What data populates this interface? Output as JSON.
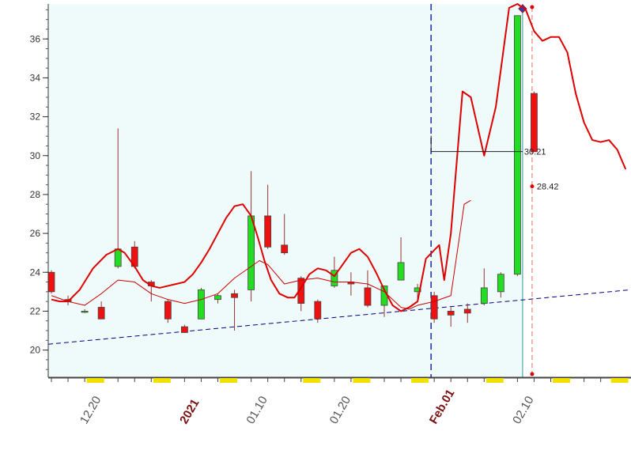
{
  "chart_data": {
    "type": "candlestick",
    "y_axis": {
      "ticks": [
        20,
        22,
        24,
        26,
        28,
        30,
        32,
        34,
        36
      ],
      "ylim": [
        18.6,
        37.8
      ]
    },
    "x_axis": {
      "labels": [
        {
          "text": "12.20",
          "index": 2,
          "strong": false
        },
        {
          "text": "2021",
          "index": 8,
          "strong": true
        },
        {
          "text": "01.10",
          "index": 12,
          "strong": false
        },
        {
          "text": "01.20",
          "index": 17,
          "strong": false
        },
        {
          "text": "Feb.01",
          "index": 23,
          "strong": true
        },
        {
          "text": "02.10",
          "index": 28,
          "strong": false
        }
      ]
    },
    "candles": [
      {
        "o": 24.0,
        "h": 24.1,
        "l": 22.9,
        "c": 23.0
      },
      {
        "o": 22.6,
        "h": 22.8,
        "l": 22.3,
        "c": 22.5
      },
      {
        "o": 22.0,
        "h": 22.1,
        "l": 21.9,
        "c": 22.0
      },
      {
        "o": 22.2,
        "h": 22.5,
        "l": 21.6,
        "c": 21.6
      },
      {
        "o": 24.3,
        "h": 31.4,
        "l": 24.2,
        "c": 25.2
      },
      {
        "o": 25.3,
        "h": 25.6,
        "l": 24.2,
        "c": 24.3
      },
      {
        "o": 23.5,
        "h": 23.6,
        "l": 22.5,
        "c": 23.3
      },
      {
        "o": 22.5,
        "h": 22.6,
        "l": 21.4,
        "c": 21.6
      },
      {
        "o": 21.2,
        "h": 21.3,
        "l": 20.9,
        "c": 20.9
      },
      {
        "o": 21.6,
        "h": 23.2,
        "l": 21.6,
        "c": 23.1
      },
      {
        "o": 22.6,
        "h": 22.9,
        "l": 22.4,
        "c": 22.8
      },
      {
        "o": 22.9,
        "h": 23.1,
        "l": 21.0,
        "c": 22.7
      },
      {
        "o": 23.1,
        "h": 29.2,
        "l": 22.5,
        "c": 26.9
      },
      {
        "o": 26.9,
        "h": 28.5,
        "l": 25.2,
        "c": 25.3
      },
      {
        "o": 25.4,
        "h": 27.0,
        "l": 24.9,
        "c": 25.0
      },
      {
        "o": 23.7,
        "h": 23.8,
        "l": 22.0,
        "c": 22.4
      },
      {
        "o": 22.5,
        "h": 22.6,
        "l": 21.4,
        "c": 21.6
      },
      {
        "o": 23.3,
        "h": 24.8,
        "l": 23.2,
        "c": 24.1
      },
      {
        "o": 23.5,
        "h": 24.0,
        "l": 22.8,
        "c": 23.4
      },
      {
        "o": 23.2,
        "h": 24.1,
        "l": 22.2,
        "c": 22.3
      },
      {
        "o": 22.3,
        "h": 23.3,
        "l": 21.7,
        "c": 23.3
      },
      {
        "o": 23.6,
        "h": 25.8,
        "l": 23.6,
        "c": 24.5
      },
      {
        "o": 23.0,
        "h": 23.4,
        "l": 22.6,
        "c": 23.2
      },
      {
        "o": 22.8,
        "h": 23.0,
        "l": 21.4,
        "c": 21.6
      },
      {
        "o": 22.0,
        "h": 22.2,
        "l": 21.2,
        "c": 21.8
      },
      {
        "o": 22.1,
        "h": 22.4,
        "l": 21.4,
        "c": 21.9
      },
      {
        "o": 22.4,
        "h": 24.2,
        "l": 22.3,
        "c": 23.2
      },
      {
        "o": 23.0,
        "h": 24.0,
        "l": 22.7,
        "c": 23.9
      },
      {
        "o": 23.9,
        "h": 37.2,
        "l": 23.8,
        "c": 37.2
      },
      {
        "o": 33.2,
        "h": 33.3,
        "l": 30.2,
        "c": 30.2
      }
    ],
    "overlay_series": [
      {
        "color": "#dd0000",
        "width": 2,
        "points": [
          [
            0,
            22.6
          ],
          [
            0.5,
            22.5
          ],
          [
            1,
            22.5
          ],
          [
            1.7,
            23.1
          ],
          [
            2.5,
            24.2
          ],
          [
            3.3,
            24.9
          ],
          [
            4,
            25.2
          ],
          [
            4.4,
            25.0
          ],
          [
            5,
            24.3
          ],
          [
            5.5,
            23.6
          ],
          [
            6,
            23.3
          ],
          [
            6.5,
            23.2
          ],
          [
            7,
            23.3
          ],
          [
            7.5,
            23.4
          ],
          [
            8,
            23.5
          ],
          [
            8.5,
            23.9
          ],
          [
            9,
            24.5
          ],
          [
            9.5,
            25.2
          ],
          [
            10,
            26.0
          ],
          [
            10.5,
            26.8
          ],
          [
            11,
            27.4
          ],
          [
            11.5,
            27.5
          ],
          [
            12,
            26.9
          ],
          [
            12.4,
            25.8
          ],
          [
            12.8,
            24.6
          ],
          [
            13.2,
            23.6
          ],
          [
            13.7,
            22.9
          ],
          [
            14.2,
            22.7
          ],
          [
            14.6,
            22.7
          ],
          [
            15,
            23.2
          ],
          [
            15.5,
            23.9
          ],
          [
            16,
            24.2
          ],
          [
            16.5,
            24.1
          ],
          [
            17,
            23.8
          ],
          [
            17.5,
            24.4
          ],
          [
            18,
            25.0
          ],
          [
            18.5,
            25.2
          ],
          [
            19,
            24.8
          ],
          [
            19.5,
            24.0
          ],
          [
            20,
            23.1
          ],
          [
            20.5,
            22.3
          ],
          [
            21,
            22.0
          ],
          [
            21.5,
            22.2
          ],
          [
            22,
            22.5
          ],
          [
            22.5,
            24.7
          ],
          [
            23.3,
            25.4
          ],
          [
            23.6,
            23.6
          ],
          [
            24,
            26.0
          ],
          [
            24.7,
            33.3
          ],
          [
            25.2,
            33.0
          ],
          [
            26,
            30.0
          ],
          [
            26.7,
            32.5
          ],
          [
            27.5,
            37.6
          ],
          [
            28,
            37.8
          ],
          [
            28.5,
            37.5
          ],
          [
            29,
            36.4
          ],
          [
            29.5,
            35.9
          ],
          [
            30,
            36.1
          ],
          [
            30.5,
            36.1
          ],
          [
            31,
            35.3
          ],
          [
            31.5,
            33.2
          ],
          [
            32,
            31.7
          ],
          [
            32.5,
            30.8
          ],
          [
            33,
            30.7
          ],
          [
            33.5,
            30.8
          ],
          [
            34,
            30.3
          ],
          [
            34.5,
            29.3
          ],
          [
            35,
            29.2
          ]
        ]
      },
      {
        "color": "#cc0000",
        "width": 1,
        "points": [
          [
            0,
            22.8
          ],
          [
            1,
            22.5
          ],
          [
            2,
            22.3
          ],
          [
            3,
            22.9
          ],
          [
            4,
            23.6
          ],
          [
            5,
            23.5
          ],
          [
            6,
            22.9
          ],
          [
            7,
            22.6
          ],
          [
            8,
            22.4
          ],
          [
            9,
            22.6
          ],
          [
            10,
            22.9
          ],
          [
            11,
            23.7
          ],
          [
            12,
            24.3
          ],
          [
            12.5,
            24.6
          ],
          [
            13,
            24.4
          ],
          [
            13.5,
            23.9
          ],
          [
            14,
            23.4
          ],
          [
            15,
            23.6
          ],
          [
            16,
            23.7
          ],
          [
            17,
            23.5
          ],
          [
            18,
            23.5
          ],
          [
            19,
            23.4
          ],
          [
            20,
            23.0
          ],
          [
            21,
            22.2
          ],
          [
            21.5,
            22.1
          ],
          [
            22,
            22.3
          ],
          [
            23,
            22.5
          ],
          [
            24,
            22.8
          ],
          [
            24.8,
            27.5
          ],
          [
            25.2,
            27.7
          ]
        ]
      }
    ],
    "trend_line": {
      "from": [
        0,
        20.3
      ],
      "to": [
        35,
        23.1
      ],
      "color": "#000080"
    },
    "annotations": [
      {
        "text": "30.21",
        "y": 30.21
      },
      {
        "text": "28.42",
        "y": 28.42
      }
    ]
  }
}
